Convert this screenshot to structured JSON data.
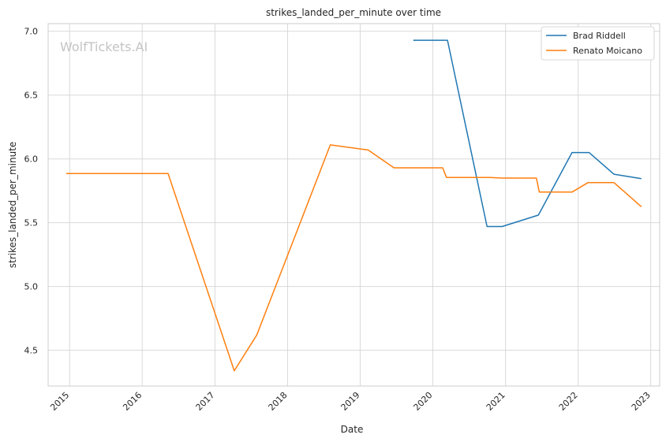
{
  "chart_data": {
    "type": "line",
    "title": "strikes_landed_per_minute over time",
    "xlabel": "Date",
    "ylabel": "strikes_landed_per_minute",
    "watermark": "WolfTickets.AI",
    "x_ticks": [
      "2015",
      "2016",
      "2017",
      "2018",
      "2019",
      "2020",
      "2021",
      "2022",
      "2023"
    ],
    "y_ticks": [
      "4.5",
      "5.0",
      "5.5",
      "6.0",
      "6.5",
      "7.0"
    ],
    "xlim": [
      "2014-09-15",
      "2023-02-15"
    ],
    "ylim": [
      4.22,
      7.06
    ],
    "grid": true,
    "legend": "top-right",
    "series": [
      {
        "name": "Brad Riddell",
        "color": "#1f77b4",
        "points": [
          [
            "2019-09-25",
            6.93
          ],
          [
            "2020-03-15",
            6.93
          ],
          [
            "2020-09-30",
            5.47
          ],
          [
            "2020-12-15",
            5.47
          ],
          [
            "2021-06-15",
            5.56
          ],
          [
            "2021-12-01",
            6.05
          ],
          [
            "2022-02-25",
            6.05
          ],
          [
            "2022-06-30",
            5.88
          ],
          [
            "2022-11-15",
            5.845
          ]
        ]
      },
      {
        "name": "Renato Moicano",
        "color": "#ff7f0e",
        "points": [
          [
            "2014-12-15",
            5.885
          ],
          [
            "2016-05-10",
            5.885
          ],
          [
            "2017-04-08",
            4.34
          ],
          [
            "2017-07-30",
            4.62
          ],
          [
            "2018-08-04",
            6.11
          ],
          [
            "2019-02-10",
            6.07
          ],
          [
            "2019-06-20",
            5.93
          ],
          [
            "2020-02-20",
            5.93
          ],
          [
            "2020-03-10",
            5.855
          ],
          [
            "2020-10-15",
            5.855
          ],
          [
            "2020-12-15",
            5.85
          ],
          [
            "2021-06-05",
            5.85
          ],
          [
            "2021-06-20",
            5.74
          ],
          [
            "2021-12-01",
            5.74
          ],
          [
            "2022-02-20",
            5.815
          ],
          [
            "2022-06-30",
            5.815
          ],
          [
            "2022-11-15",
            5.625
          ]
        ]
      }
    ]
  }
}
